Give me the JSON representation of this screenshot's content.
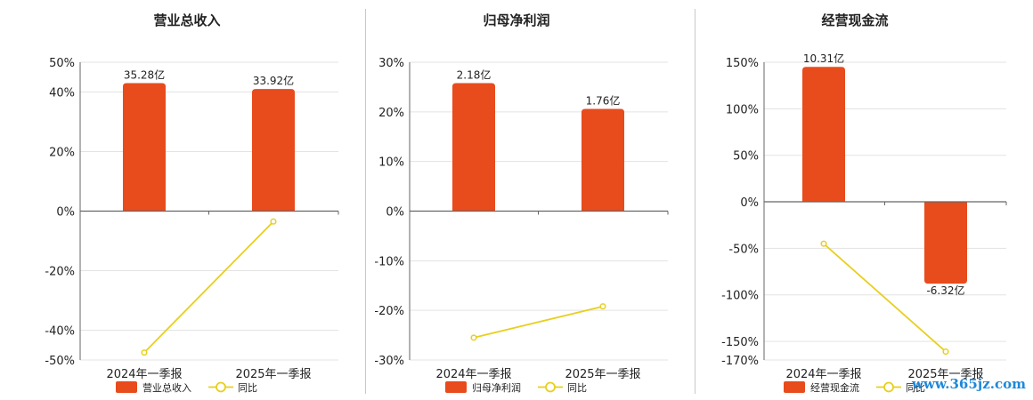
{
  "watermark": "www.365jz.com",
  "colors": {
    "bar": "#e84b1c",
    "line": "#e8cf1e",
    "axis": "#666666",
    "grid": "#e3e3e3",
    "divider": "#c8c8c8"
  },
  "legend": {
    "yoy_label": "同比"
  },
  "chart_data": [
    {
      "type": "bar",
      "title": "营业总收入",
      "categories": [
        "2024年一季报",
        "2025年一季报"
      ],
      "ylim": [
        -50,
        50
      ],
      "yticks": [
        50,
        40,
        20,
        0,
        -20,
        -40,
        -50
      ],
      "bars": {
        "name": "营业总收入",
        "heights_pct": [
          43,
          41
        ],
        "labels": [
          "35.28亿",
          "33.92亿"
        ]
      },
      "line": {
        "name": "同比",
        "values_pct": [
          -47.5,
          -3.5
        ]
      }
    },
    {
      "type": "bar",
      "title": "归母净利润",
      "categories": [
        "2024年一季报",
        "2025年一季报"
      ],
      "ylim": [
        -30,
        30
      ],
      "yticks": [
        30,
        20,
        10,
        0,
        -10,
        -20,
        -30
      ],
      "bars": {
        "name": "归母净利润",
        "heights_pct": [
          25.8,
          20.6
        ],
        "labels": [
          "2.18亿",
          "1.76亿"
        ]
      },
      "line": {
        "name": "同比",
        "values_pct": [
          -25.5,
          -19.2
        ]
      }
    },
    {
      "type": "bar",
      "title": "经营现金流",
      "categories": [
        "2024年一季报",
        "2025年一季报"
      ],
      "ylim": [
        -170,
        150
      ],
      "yticks": [
        150,
        100,
        50,
        0,
        -50,
        -100,
        -150,
        -170
      ],
      "bars": {
        "name": "经营现金流",
        "heights_pct": [
          145,
          -88
        ],
        "labels": [
          "10.31亿",
          "-6.32亿"
        ]
      },
      "line": {
        "name": "同比",
        "values_pct": [
          -45,
          -161
        ]
      }
    }
  ]
}
